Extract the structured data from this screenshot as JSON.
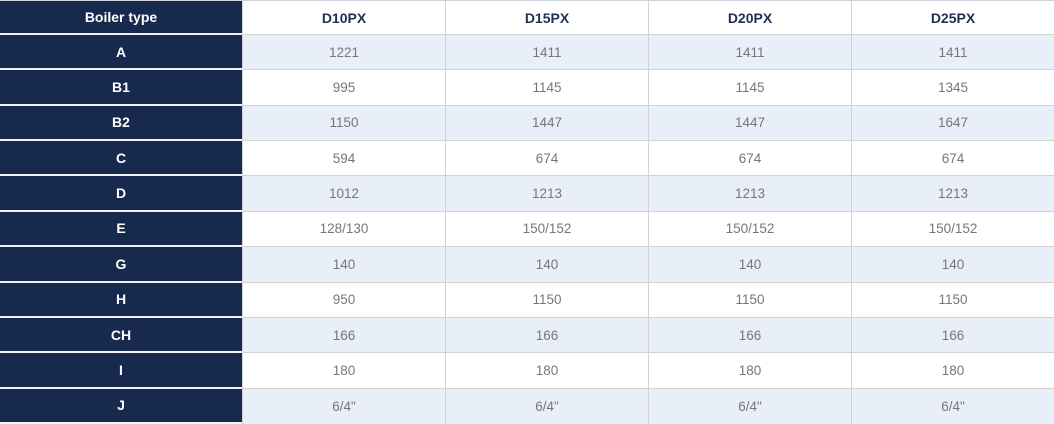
{
  "colors": {
    "header_bg": "#17294d",
    "stripe_row_bg": "#e9eff8",
    "grid_line": "#d3d3d3",
    "navy_separator": "#f0f2f7",
    "value_text": "#74777b",
    "column_header_text": "#1f3150"
  },
  "table": {
    "header": [
      "Boiler type",
      "D10PX",
      "D15PX",
      "D20PX",
      "D25PX"
    ],
    "rows": [
      {
        "label": "A",
        "values": [
          "1221",
          "1411",
          "1411",
          "1411"
        ]
      },
      {
        "label": "B1",
        "values": [
          "995",
          "1145",
          "1145",
          "1345"
        ]
      },
      {
        "label": "B2",
        "values": [
          "1150",
          "1447",
          "1447",
          "1647"
        ]
      },
      {
        "label": "C",
        "values": [
          "594",
          "674",
          "674",
          "674"
        ]
      },
      {
        "label": "D",
        "values": [
          "1012",
          "1213",
          "1213",
          "1213"
        ]
      },
      {
        "label": "E",
        "values": [
          "128/130",
          "150/152",
          "150/152",
          "150/152"
        ]
      },
      {
        "label": "G",
        "values": [
          "140",
          "140",
          "140",
          "140"
        ]
      },
      {
        "label": "H",
        "values": [
          "950",
          "1150",
          "1150",
          "1150"
        ]
      },
      {
        "label": "CH",
        "values": [
          "166",
          "166",
          "166",
          "166"
        ]
      },
      {
        "label": "I",
        "values": [
          "180",
          "180",
          "180",
          "180"
        ]
      },
      {
        "label": "J",
        "values": [
          "6/4\"",
          "6/4\"",
          "6/4\"",
          "6/4\""
        ]
      }
    ]
  }
}
